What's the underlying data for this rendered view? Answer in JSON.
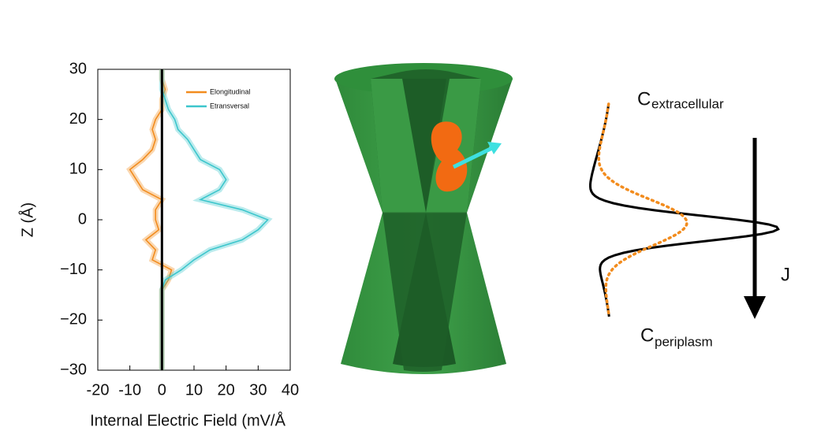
{
  "chart_data": {
    "type": "line",
    "xlabel": "Internal Electric Field (mV/Å",
    "ylabel": "Z (Å)",
    "z": [
      -30,
      -28,
      -26,
      -24,
      -22,
      -20,
      -18,
      -16,
      -14,
      -12,
      -10,
      -8,
      -6,
      -4,
      -2,
      0,
      2,
      4,
      6,
      8,
      10,
      12,
      14,
      16,
      18,
      20,
      22,
      24,
      26,
      28,
      30
    ],
    "series": [
      {
        "name": "Elongitudinal",
        "color": "#f28c1e",
        "values": [
          0,
          0,
          0,
          0,
          0,
          0,
          0,
          0,
          0,
          2,
          3,
          -3,
          -2,
          -5,
          -1,
          -2,
          -2,
          0,
          -6,
          -8,
          -10,
          -6,
          -3,
          -2,
          -3,
          -2,
          0,
          0,
          1,
          0,
          0
        ]
      },
      {
        "name": "Etransversal",
        "color": "#3cc6cc",
        "values": [
          0,
          0,
          0,
          0,
          0,
          0,
          0,
          0,
          0,
          1,
          6,
          10,
          15,
          25,
          30,
          33,
          25,
          12,
          18,
          20,
          18,
          12,
          10,
          8,
          5,
          4,
          2,
          1,
          0,
          0,
          0
        ]
      }
    ],
    "xlim": [
      -20,
      40
    ],
    "xticks": [
      -20,
      -10,
      0,
      10,
      20,
      30,
      40
    ],
    "ylim": [
      -30,
      30
    ],
    "yticks": [
      {
        "value": -30,
        "label": "−30"
      },
      {
        "value": -20,
        "label": "−20"
      },
      {
        "value": -10,
        "label": "−10"
      },
      0,
      10,
      20,
      30
    ]
  },
  "diagram": {
    "c_top": "C",
    "c_top_sub": "extracellular",
    "c_bottom": "C",
    "c_bottom_sub": "periplasm",
    "flux": "J"
  }
}
